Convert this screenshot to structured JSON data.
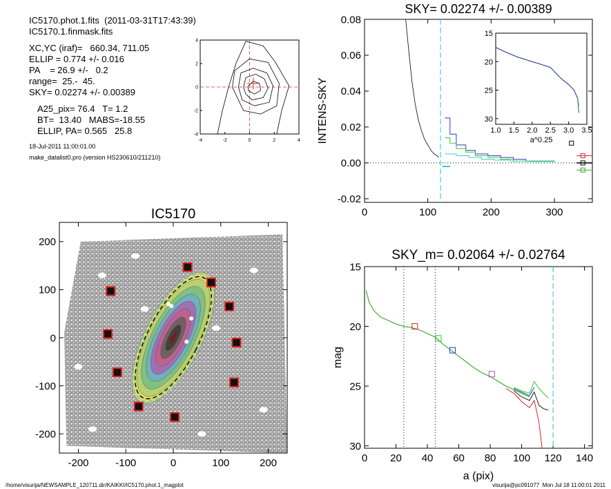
{
  "info": {
    "line1": "IC5170.phot.1.fits  (2011-03-31T17:43:39)",
    "line2": "IC5170.1.finmask.fits",
    "xcyc": "XC,YC (iraf)=   660.34, 711.05",
    "ellip": "ELLIP = 0.774 +/- 0.016",
    "pa": "PA    = 26.9 +/-   0.2",
    "range": "range=  25.-  45.",
    "sky": "SKY= 0.02274 +/- 0.00389",
    "a25": "A25_pix= 76.4   T= 1.2",
    "bt": "BT=  13.40   MABS=-18.55",
    "ellippa": "ELLIP, PA= 0.565   25.8",
    "date": "18-Jul-2011 11:00:01.00",
    "program": "make_datalist0.pro (version HS230610/211210)"
  },
  "footer": {
    "left": "/home/visurija/NEWSAMPLE_120711.dir/KAIKKI/IC5170.phot.1_magplot",
    "right": "visurija@pc091077  Mon Jul 18 11:00:01 2011"
  },
  "chart_data": [
    {
      "id": "centroid",
      "type": "contour",
      "title": "",
      "xlim": [
        -4,
        4
      ],
      "ylim": [
        -4,
        4
      ],
      "xticks": [
        "-4",
        "-2",
        "0",
        "2",
        "4"
      ],
      "yticks": [
        "-4",
        "-2",
        "0",
        "2",
        "4"
      ],
      "contours": [
        [
          [
            -2.6,
            -4
          ],
          [
            -2.2,
            -2
          ],
          [
            -1.7,
            0
          ],
          [
            -1.1,
            2
          ],
          [
            -0.3,
            3.9
          ],
          [
            1.1,
            3.5
          ],
          [
            2.1,
            2.1
          ],
          [
            3.2,
            0.1
          ],
          [
            2.6,
            -2
          ],
          [
            2.2,
            -4
          ]
        ],
        [
          [
            -1.4,
            0
          ],
          [
            -1.2,
            1.4
          ],
          [
            0,
            2.4
          ],
          [
            1.5,
            2.1
          ],
          [
            2.4,
            0.3
          ],
          [
            2.2,
            -1.6
          ],
          [
            0.9,
            -2.3
          ],
          [
            -0.5,
            -2
          ],
          [
            -1.4,
            0
          ]
        ],
        [
          [
            -0.9,
            0
          ],
          [
            -0.7,
            1.2
          ],
          [
            0.3,
            1.6
          ],
          [
            1.4,
            1.2
          ],
          [
            1.9,
            0.1
          ],
          [
            1.6,
            -1.3
          ],
          [
            0.4,
            -1.6
          ],
          [
            -0.6,
            -1.1
          ],
          [
            -0.9,
            0
          ]
        ],
        [
          [
            -0.5,
            0
          ],
          [
            -0.3,
            0.8
          ],
          [
            0.5,
            1.1
          ],
          [
            1.2,
            0.7
          ],
          [
            1.5,
            -0.1
          ],
          [
            1.1,
            -0.9
          ],
          [
            0.2,
            -1.1
          ],
          [
            -0.3,
            -0.6
          ],
          [
            -0.5,
            0
          ]
        ],
        [
          [
            -0.1,
            0.1
          ],
          [
            0.3,
            0.5
          ],
          [
            0.8,
            0.3
          ],
          [
            0.9,
            -0.3
          ],
          [
            0.4,
            -0.6
          ],
          [
            -0.1,
            -0.3
          ],
          [
            -0.1,
            0.1
          ]
        ]
      ],
      "center": [
        0.3,
        0.3
      ]
    },
    {
      "id": "sky",
      "type": "line",
      "title": "SKY= 0.02274 +/- 0.00389",
      "xlabel": "",
      "ylabel": "INTENS-SKY",
      "xlim": [
        0,
        360
      ],
      "ylim": [
        -0.022,
        0.08
      ],
      "xticks": [
        {
          "v": 0,
          "l": "0"
        },
        {
          "v": 100,
          "l": "100"
        },
        {
          "v": 200,
          "l": "200"
        },
        {
          "v": 300,
          "l": "300"
        }
      ],
      "yticks": [
        {
          "v": -0.02,
          "l": "-0.02"
        },
        {
          "v": 0,
          "l": "0.00"
        },
        {
          "v": 0.02,
          "l": "0.02"
        },
        {
          "v": 0.04,
          "l": "0.04"
        },
        {
          "v": 0.06,
          "l": "0.06"
        },
        {
          "v": 0.08,
          "l": "0.08"
        }
      ],
      "vline": 120,
      "profile": [
        [
          65,
          0.08
        ],
        [
          70,
          0.062
        ],
        [
          75,
          0.045
        ],
        [
          80,
          0.033
        ],
        [
          85,
          0.024
        ],
        [
          90,
          0.018
        ],
        [
          95,
          0.013
        ],
        [
          100,
          0.01
        ],
        [
          105,
          0.007
        ],
        [
          110,
          0.005
        ],
        [
          115,
          0.004
        ],
        [
          117,
          0.003
        ]
      ],
      "series": [
        {
          "color": "#3030c8",
          "steps": [
            [
              127,
              0.025
            ],
            [
              135,
              0.016
            ],
            [
              145,
              0.01
            ],
            [
              160,
              0.007
            ],
            [
              175,
              0.005
            ],
            [
              195,
              0.004
            ],
            [
              215,
              0.003
            ],
            [
              235,
              0.002
            ],
            [
              255,
              0.001
            ],
            [
              300,
              0.0008
            ]
          ]
        },
        {
          "color": "#30c830",
          "steps": [
            [
              127,
              0.014
            ],
            [
              135,
              0.011
            ],
            [
              145,
              0.008
            ],
            [
              160,
              0.006
            ],
            [
              175,
              0.004
            ],
            [
              195,
              0.003
            ],
            [
              215,
              0.002
            ],
            [
              235,
              0.001
            ],
            [
              255,
              0.001
            ],
            [
              300,
              0.0005
            ]
          ]
        },
        {
          "color": "#40c8c8",
          "steps": [
            [
              127,
              0.005
            ],
            [
              145,
              0.004
            ],
            [
              165,
              0.003
            ],
            [
              185,
              0.002
            ],
            [
              205,
              0.0015
            ],
            [
              230,
              0.001
            ],
            [
              260,
              0.0007
            ],
            [
              300,
              0.0003
            ]
          ]
        }
      ],
      "cyan_mark": [
        [
          123,
          -0.002
        ],
        [
          135,
          -0.002
        ]
      ],
      "right_marks": [
        {
          "color": "#e02020",
          "y": 0.004
        },
        {
          "color": "#000000",
          "y": 0.0
        },
        {
          "color": "#30b030",
          "y": -0.004
        }
      ],
      "inset": {
        "xlabel": "a^0.25",
        "xlim": [
          1.0,
          3.5
        ],
        "ylim": [
          15,
          31
        ],
        "xticks": [
          {
            "v": 1.0,
            "l": "1.0"
          },
          {
            "v": 1.5,
            "l": "1.5"
          },
          {
            "v": 2.0,
            "l": "2.0"
          },
          {
            "v": 2.5,
            "l": "2.5"
          },
          {
            "v": 3.0,
            "l": "3.0"
          },
          {
            "v": 3.5,
            "l": "3.5"
          }
        ],
        "yticks": [
          {
            "v": 15,
            "l": "15"
          },
          {
            "v": 20,
            "l": "20"
          },
          {
            "v": 25,
            "l": "25"
          },
          {
            "v": 30,
            "l": "30"
          }
        ],
        "curve": [
          [
            1.0,
            17.5
          ],
          [
            1.3,
            18.4
          ],
          [
            1.6,
            19.2
          ],
          [
            1.9,
            19.8
          ],
          [
            2.2,
            20.4
          ],
          [
            2.5,
            21.0
          ],
          [
            2.65,
            22.0
          ],
          [
            2.8,
            23.0
          ],
          [
            3.0,
            24.0
          ],
          [
            3.15,
            25.0
          ],
          [
            3.25,
            26.5
          ]
        ]
      }
    },
    {
      "id": "image",
      "type": "scatter",
      "title": "IC5170",
      "xlim": [
        -240,
        240
      ],
      "ylim": [
        -240,
        240
      ],
      "xticks": [
        {
          "v": -200,
          "l": "-200"
        },
        {
          "v": -100,
          "l": "-100"
        },
        {
          "v": 0,
          "l": "0"
        },
        {
          "v": 100,
          "l": "100"
        },
        {
          "v": 200,
          "l": "200"
        }
      ],
      "yticks": [
        {
          "v": -200,
          "l": "-200"
        },
        {
          "v": -100,
          "l": "-100"
        },
        {
          "v": 0,
          "l": "0"
        },
        {
          "v": 100,
          "l": "100"
        },
        {
          "v": 200,
          "l": "200"
        }
      ],
      "boxes": [
        [
          30,
          147
        ],
        [
          80,
          115
        ],
        [
          -132,
          97
        ],
        [
          118,
          65
        ],
        [
          -138,
          8
        ],
        [
          133,
          -10
        ],
        [
          -118,
          -72
        ],
        [
          128,
          -93
        ],
        [
          -73,
          -143
        ],
        [
          3,
          -165
        ]
      ]
    },
    {
      "id": "mag",
      "type": "line",
      "title": "SKY_m=  0.02064 +/- 0.02764",
      "xlabel": "a (pix)",
      "ylabel": "mag",
      "xlim": [
        0,
        145
      ],
      "ylim": [
        15,
        30.2
      ],
      "xticks": [
        {
          "v": 0,
          "l": "0"
        },
        {
          "v": 20,
          "l": "20"
        },
        {
          "v": 40,
          "l": "40"
        },
        {
          "v": 60,
          "l": "60"
        },
        {
          "v": 80,
          "l": "80"
        },
        {
          "v": 100,
          "l": "100"
        },
        {
          "v": 120,
          "l": "120"
        },
        {
          "v": 140,
          "l": "140"
        }
      ],
      "yticks": [
        {
          "v": 15,
          "l": "15"
        },
        {
          "v": 20,
          "l": "20"
        },
        {
          "v": 25,
          "l": "25"
        },
        {
          "v": 30,
          "l": "30"
        }
      ],
      "vlines_dotted": [
        25,
        45
      ],
      "vline_dashed": 120,
      "base": [
        [
          1,
          17.0
        ],
        [
          3,
          18.0
        ],
        [
          6,
          18.7
        ],
        [
          10,
          19.2
        ],
        [
          15,
          19.5
        ],
        [
          20,
          19.8
        ],
        [
          25,
          20.0
        ],
        [
          30,
          20.1
        ],
        [
          35,
          20.3
        ],
        [
          40,
          20.6
        ],
        [
          45,
          20.9
        ],
        [
          50,
          21.5
        ],
        [
          55,
          22.0
        ],
        [
          60,
          22.5
        ],
        [
          65,
          23.0
        ],
        [
          70,
          23.5
        ],
        [
          75,
          23.9
        ],
        [
          80,
          24.2
        ],
        [
          85,
          24.6
        ],
        [
          90,
          25.0
        ],
        [
          95,
          25.3
        ],
        [
          100,
          25.6
        ],
        [
          105,
          25.9
        ]
      ],
      "tails": [
        {
          "color": "#e02020",
          "pts": [
            [
              90,
              25.2
            ],
            [
              95,
              25.6
            ],
            [
              100,
              26.3
            ],
            [
              105,
              26.8
            ],
            [
              108,
              26.2
            ],
            [
              111,
              28.0
            ],
            [
              113,
              30.2
            ]
          ]
        },
        {
          "color": "#202020",
          "pts": [
            [
              95,
              25.4
            ],
            [
              100,
              25.9
            ],
            [
              105,
              26.2
            ],
            [
              108,
              25.5
            ],
            [
              111,
              26.6
            ],
            [
              114,
              26.9
            ],
            [
              117,
              27.0
            ]
          ]
        },
        {
          "color": "#30c830",
          "pts": [
            [
              95,
              25.1
            ],
            [
              100,
              25.4
            ],
            [
              105,
              25.6
            ],
            [
              108,
              24.6
            ],
            [
              111,
              25.2
            ],
            [
              114,
              25.6
            ],
            [
              117,
              26.0
            ]
          ]
        },
        {
          "color": "#3030c8",
          "pts": [
            [
              95,
              25.2
            ],
            [
              100,
              25.5
            ],
            [
              105,
              25.8
            ],
            [
              108,
              25.1
            ]
          ]
        }
      ],
      "markers": [
        {
          "color": "#e02020",
          "x": 32,
          "y": 20.0
        },
        {
          "color": "#30c830",
          "x": 47,
          "y": 21.0
        },
        {
          "color": "#3030c8",
          "x": 56,
          "y": 22.0
        },
        {
          "color": "#c040c0",
          "x": 81,
          "y": 24.0
        }
      ]
    }
  ]
}
